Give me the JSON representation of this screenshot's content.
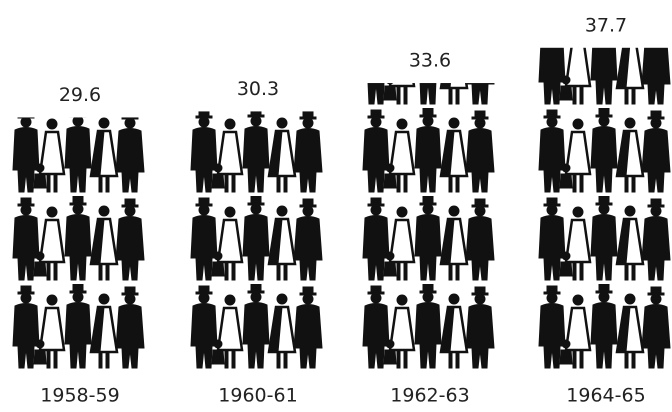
{
  "chart_data": {
    "type": "pictograph",
    "categories": [
      "1958-59",
      "1960-61",
      "1962-63",
      "1964-65"
    ],
    "values": [
      29.6,
      30.3,
      33.6,
      37.7
    ],
    "color": "#111111"
  }
}
